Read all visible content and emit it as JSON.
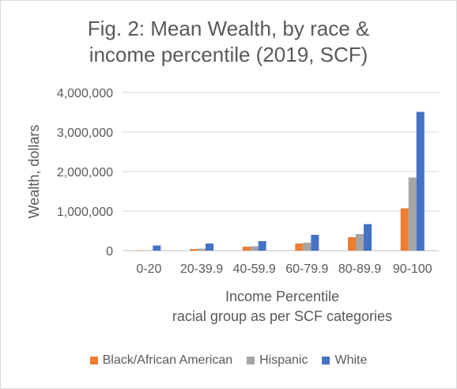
{
  "chart_data": {
    "type": "bar",
    "title_lines": [
      "Fig. 2: Mean Wealth, by race &",
      "income percentile (2019, SCF)"
    ],
    "xlabel_lines": [
      "Income Percentile",
      "racial group as per SCF categories"
    ],
    "ylabel": "Wealth, dollars",
    "categories": [
      "0-20",
      "20-39.9",
      "40-59.9",
      "60-79.9",
      "80-89.9",
      "90-100"
    ],
    "ylim": [
      0,
      4000000
    ],
    "yticks": [
      0,
      1000000,
      2000000,
      3000000,
      4000000
    ],
    "ytick_labels": [
      "0",
      "1,000,000",
      "2,000,000",
      "3,000,000",
      "4,000,000"
    ],
    "grid": true,
    "legend_position": "bottom",
    "series": [
      {
        "name": "Black/African American",
        "color": "#ed7d31",
        "values": [
          10000,
          40000,
          100000,
          180000,
          340000,
          1070000
        ]
      },
      {
        "name": "Hispanic",
        "color": "#a5a5a5",
        "values": [
          10000,
          50000,
          110000,
          200000,
          420000,
          1850000
        ]
      },
      {
        "name": "White",
        "color": "#4472c4",
        "values": [
          130000,
          180000,
          240000,
          400000,
          670000,
          3510000
        ]
      }
    ]
  }
}
